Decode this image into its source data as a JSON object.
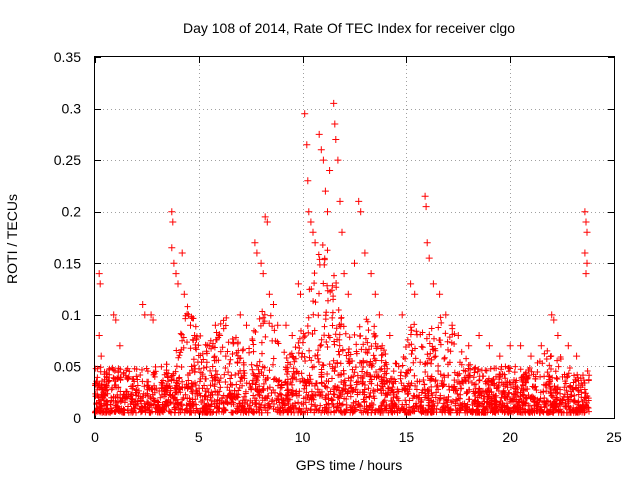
{
  "chart_data": {
    "type": "scatter",
    "title": "Day 108 of 2014, Rate Of TEC Index for receiver clgo",
    "xlabel": "GPS time / hours",
    "ylabel": "ROTI / TECUs",
    "xlim": [
      0,
      25
    ],
    "ylim": [
      0,
      0.35
    ],
    "x_ticks": [
      0,
      5,
      10,
      15,
      20,
      25
    ],
    "y_ticks": [
      0,
      0.05,
      0.1,
      0.15,
      0.2,
      0.25,
      0.3,
      0.35
    ],
    "x_tick_labels": [
      "0",
      "5",
      "10",
      "15",
      "20",
      "25"
    ],
    "y_tick_labels": [
      "0",
      "0.05",
      "0.1",
      "0.15",
      "0.2",
      "0.25",
      "0.3",
      "0.35"
    ],
    "grid": true,
    "marker": "+",
    "series": [
      {
        "name": "ROTI",
        "color": "#ff0000",
        "data_range_hours": [
          0,
          23.8
        ],
        "points": [
          [
            0.2,
            0.14
          ],
          [
            0.25,
            0.13
          ],
          [
            0.2,
            0.08
          ],
          [
            0.3,
            0.06
          ],
          [
            0.9,
            0.1
          ],
          [
            1.0,
            0.095
          ],
          [
            1.2,
            0.07
          ],
          [
            2.3,
            0.11
          ],
          [
            2.4,
            0.1
          ],
          [
            2.7,
            0.1
          ],
          [
            2.8,
            0.095
          ],
          [
            3.7,
            0.2
          ],
          [
            3.75,
            0.19
          ],
          [
            3.7,
            0.165
          ],
          [
            3.8,
            0.15
          ],
          [
            3.9,
            0.14
          ],
          [
            4.0,
            0.13
          ],
          [
            4.2,
            0.16
          ],
          [
            4.3,
            0.12
          ],
          [
            4.5,
            0.1
          ],
          [
            4.6,
            0.09
          ],
          [
            4.8,
            0.08
          ],
          [
            5.5,
            0.07
          ],
          [
            5.8,
            0.09
          ],
          [
            6.0,
            0.08
          ],
          [
            6.3,
            0.06
          ],
          [
            7.0,
            0.1
          ],
          [
            7.3,
            0.09
          ],
          [
            7.7,
            0.17
          ],
          [
            7.8,
            0.16
          ],
          [
            8.0,
            0.15
          ],
          [
            8.1,
            0.14
          ],
          [
            8.2,
            0.195
          ],
          [
            8.3,
            0.19
          ],
          [
            8.4,
            0.12
          ],
          [
            8.6,
            0.11
          ],
          [
            8.8,
            0.09
          ],
          [
            9.2,
            0.09
          ],
          [
            9.5,
            0.08
          ],
          [
            9.8,
            0.13
          ],
          [
            9.9,
            0.12
          ],
          [
            10.1,
            0.295
          ],
          [
            10.2,
            0.265
          ],
          [
            10.25,
            0.23
          ],
          [
            10.3,
            0.2
          ],
          [
            10.4,
            0.19
          ],
          [
            10.5,
            0.18
          ],
          [
            10.6,
            0.17
          ],
          [
            10.8,
            0.275
          ],
          [
            10.9,
            0.26
          ],
          [
            11.0,
            0.25
          ],
          [
            11.1,
            0.22
          ],
          [
            11.2,
            0.2
          ],
          [
            11.3,
            0.24
          ],
          [
            11.5,
            0.305
          ],
          [
            11.55,
            0.285
          ],
          [
            11.6,
            0.27
          ],
          [
            11.7,
            0.25
          ],
          [
            11.8,
            0.21
          ],
          [
            11.9,
            0.18
          ],
          [
            12.0,
            0.14
          ],
          [
            12.2,
            0.12
          ],
          [
            12.5,
            0.15
          ],
          [
            12.7,
            0.21
          ],
          [
            12.8,
            0.2
          ],
          [
            13.0,
            0.16
          ],
          [
            13.3,
            0.14
          ],
          [
            13.5,
            0.12
          ],
          [
            13.7,
            0.1
          ],
          [
            14.2,
            0.08
          ],
          [
            14.8,
            0.1
          ],
          [
            15.2,
            0.13
          ],
          [
            15.4,
            0.12
          ],
          [
            15.9,
            0.215
          ],
          [
            15.95,
            0.205
          ],
          [
            16.0,
            0.17
          ],
          [
            16.1,
            0.155
          ],
          [
            16.3,
            0.13
          ],
          [
            16.6,
            0.12
          ],
          [
            16.9,
            0.1
          ],
          [
            17.2,
            0.09
          ],
          [
            17.5,
            0.08
          ],
          [
            18.0,
            0.07
          ],
          [
            18.5,
            0.08
          ],
          [
            19.0,
            0.07
          ],
          [
            19.5,
            0.06
          ],
          [
            20.0,
            0.07
          ],
          [
            20.5,
            0.07
          ],
          [
            21.0,
            0.06
          ],
          [
            21.5,
            0.07
          ],
          [
            22.0,
            0.1
          ],
          [
            22.1,
            0.095
          ],
          [
            22.3,
            0.08
          ],
          [
            22.8,
            0.07
          ],
          [
            23.2,
            0.06
          ],
          [
            23.6,
            0.2
          ],
          [
            23.65,
            0.19
          ],
          [
            23.7,
            0.18
          ],
          [
            23.6,
            0.16
          ],
          [
            23.7,
            0.15
          ],
          [
            23.65,
            0.14
          ]
        ]
      }
    ]
  }
}
